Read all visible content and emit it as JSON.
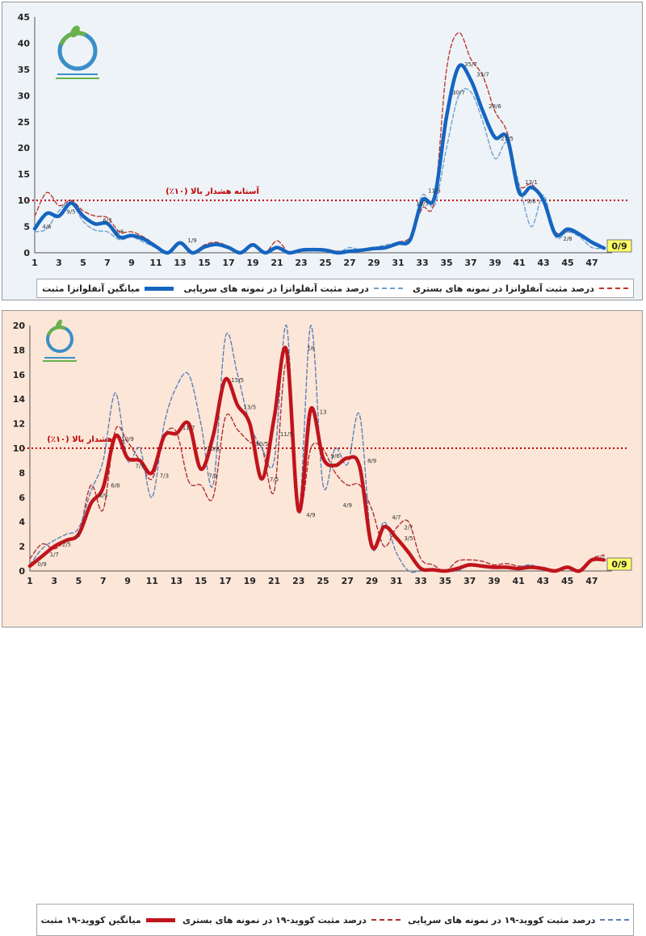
{
  "chart_data": [
    {
      "type": "line",
      "id": "flu",
      "colors": {
        "avg": "#1565c0",
        "outpatient": "#6fa0cc",
        "inpatient": "#c0392b",
        "threshold": "#c00000"
      },
      "xlim": [
        1,
        48
      ],
      "x_ticks": [
        1,
        3,
        5,
        7,
        9,
        11,
        13,
        15,
        17,
        19,
        21,
        23,
        25,
        27,
        29,
        31,
        33,
        35,
        37,
        39,
        41,
        43,
        45,
        47
      ],
      "ylim": [
        0,
        45
      ],
      "y_ticks": [
        0,
        5,
        10,
        15,
        20,
        25,
        30,
        35,
        40,
        45
      ],
      "threshold": {
        "value": 10,
        "label": "آستانه هشدار بالا (۱۰٪)"
      },
      "last_value_label": "0/9",
      "series": [
        {
          "name": "میانگین آنفلوانزا مثبت",
          "key": "avg",
          "x": [
            1,
            2,
            3,
            4,
            5,
            6,
            7,
            8,
            9,
            10,
            11,
            12,
            13,
            14,
            15,
            16,
            17,
            18,
            19,
            20,
            21,
            22,
            23,
            24,
            25,
            26,
            27,
            28,
            29,
            30,
            31,
            32,
            33,
            34,
            35,
            36,
            37,
            38,
            39,
            40,
            41,
            42,
            43,
            44,
            45,
            46,
            47,
            48
          ],
          "values": [
            4.6,
            7.5,
            7,
            9.5,
            7,
            5.5,
            5.6,
            3,
            3.3,
            2.6,
            1.2,
            0,
            1.9,
            0,
            1.1,
            1.6,
            1,
            0,
            1.5,
            0,
            1,
            0,
            0.5,
            0.6,
            0.5,
            0,
            0.3,
            0.5,
            0.8,
            1,
            1.8,
            2.5,
            10,
            10.5,
            26,
            35.5,
            33,
            27,
            22,
            22,
            11.5,
            12.5,
            10,
            3.5,
            4.5,
            3.5,
            2,
            0.9
          ]
        },
        {
          "name": "درصد مثبت آنفلوانزا در نمونه های سرپایی",
          "key": "outpatient",
          "x": [
            1,
            2,
            3,
            4,
            5,
            6,
            7,
            8,
            9,
            10,
            11,
            12,
            13,
            14,
            15,
            16,
            17,
            18,
            19,
            20,
            21,
            22,
            23,
            24,
            25,
            26,
            27,
            28,
            29,
            30,
            31,
            32,
            33,
            34,
            35,
            36,
            37,
            38,
            39,
            40,
            41,
            42,
            43,
            44,
            45,
            46,
            47,
            48
          ],
          "values": [
            4,
            4.6,
            8,
            9.5,
            6,
            4.3,
            4,
            2.5,
            3,
            2,
            1,
            0,
            2,
            0,
            1,
            1.5,
            1,
            0,
            1.5,
            0,
            1.2,
            0,
            0.6,
            0.5,
            0.5,
            0,
            1,
            0.5,
            1,
            1.5,
            2,
            3,
            11,
            9,
            20,
            30,
            30.7,
            25,
            18,
            21,
            13,
            5,
            11,
            3,
            4,
            3,
            1,
            0.9
          ]
        },
        {
          "name": "درصد مثبت آنفلوانزا در نمونه های بستری",
          "key": "inpatient",
          "x": [
            1,
            2,
            3,
            4,
            5,
            6,
            7,
            8,
            9,
            10,
            11,
            12,
            13,
            14,
            15,
            16,
            17,
            18,
            19,
            20,
            21,
            22,
            23,
            24,
            25,
            26,
            27,
            28,
            29,
            30,
            31,
            32,
            33,
            34,
            35,
            36,
            37,
            38,
            39,
            40,
            41,
            42,
            43,
            44,
            45,
            46,
            47,
            48
          ],
          "values": [
            7,
            11.5,
            9,
            10,
            8,
            7,
            6.7,
            4,
            4,
            3,
            1.5,
            0,
            2,
            0,
            1.5,
            2,
            1.2,
            0,
            1.8,
            0,
            2.3,
            0,
            0.5,
            0.7,
            0.7,
            0.3,
            0.5,
            0.5,
            0.8,
            1,
            2,
            3,
            8.5,
            10,
            35,
            42,
            37,
            33.7,
            27,
            23,
            13,
            13.1,
            10,
            4,
            4,
            3.5,
            2,
            0.9
          ]
        }
      ],
      "annotations": [
        {
          "x": 2,
          "y": 4.6,
          "text": "4/6"
        },
        {
          "x": 4,
          "y": 7.5,
          "text": "9/5"
        },
        {
          "x": 7,
          "y": 5.8,
          "text": "6/7"
        },
        {
          "x": 8,
          "y": 3.6,
          "text": "3/6"
        },
        {
          "x": 14,
          "y": 2,
          "text": "1/9"
        },
        {
          "x": 33,
          "y": 9,
          "text": "10/5"
        },
        {
          "x": 34,
          "y": 11.5,
          "text": "11/5"
        },
        {
          "x": 36,
          "y": 30.2,
          "text": "30/7"
        },
        {
          "x": 37,
          "y": 35.6,
          "text": "35/7"
        },
        {
          "x": 38,
          "y": 33.7,
          "text": "33/7"
        },
        {
          "x": 39,
          "y": 27.6,
          "text": "28/6"
        },
        {
          "x": 40,
          "y": 21.4,
          "text": "21/5"
        },
        {
          "x": 42,
          "y": 13.1,
          "text": "13/1"
        },
        {
          "x": 42,
          "y": 9.5,
          "text": "9/6"
        },
        {
          "x": 45,
          "y": 2.3,
          "text": "2/8"
        }
      ]
    },
    {
      "type": "line",
      "id": "covid",
      "colors": {
        "avg": "#c0141c",
        "outpatient": "#5b82b8",
        "inpatient": "#b03030",
        "threshold": "#c00000"
      },
      "xlim": [
        1,
        48
      ],
      "x_ticks": [
        1,
        3,
        5,
        7,
        9,
        11,
        13,
        15,
        17,
        19,
        21,
        23,
        25,
        27,
        29,
        31,
        33,
        35,
        37,
        39,
        41,
        43,
        45,
        47
      ],
      "ylim": [
        0,
        20
      ],
      "y_ticks": [
        0,
        2,
        4,
        6,
        8,
        10,
        12,
        14,
        16,
        18,
        20
      ],
      "threshold": {
        "value": 10,
        "label": "هشدار بالا (۱۰٪)"
      },
      "last_value_label": "0/9",
      "series": [
        {
          "name": "میانگین کووید-۱۹ مثبت",
          "key": "avg",
          "x": [
            1,
            2,
            3,
            4,
            5,
            6,
            7,
            8,
            9,
            10,
            11,
            12,
            13,
            14,
            15,
            16,
            17,
            18,
            19,
            20,
            21,
            22,
            23,
            24,
            25,
            26,
            27,
            28,
            29,
            30,
            31,
            32,
            33,
            34,
            35,
            36,
            37,
            38,
            39,
            40,
            41,
            42,
            43,
            44,
            45,
            46,
            47,
            48
          ],
          "values": [
            0.4,
            1.2,
            2,
            2.5,
            3,
            5.5,
            6.8,
            11,
            9.2,
            9,
            8,
            11,
            11.2,
            12,
            8.3,
            11,
            15.6,
            13.5,
            12,
            7.5,
            12.5,
            18,
            4.9,
            13.2,
            9.2,
            8.6,
            9.2,
            8.5,
            2,
            3.6,
            2.7,
            1.5,
            0.2,
            0.1,
            0,
            0.2,
            0.5,
            0.4,
            0.3,
            0.3,
            0.2,
            0.3,
            0.2,
            0,
            0.3,
            0,
            0.9,
            0.9
          ]
        },
        {
          "name": "درصد مثبت کووید-۱۹ در نمونه های سرپایی",
          "key": "outpatient",
          "x": [
            1,
            2,
            3,
            4,
            5,
            6,
            7,
            8,
            9,
            10,
            11,
            12,
            13,
            14,
            15,
            16,
            17,
            18,
            19,
            20,
            21,
            22,
            23,
            24,
            25,
            26,
            27,
            28,
            29,
            30,
            31,
            32,
            33,
            34,
            35,
            36,
            37,
            38,
            39,
            40,
            41,
            42,
            43,
            44,
            45,
            46,
            47,
            48
          ],
          "values": [
            0.5,
            1.8,
            2.5,
            3,
            3.5,
            6.5,
            9,
            14.5,
            9,
            10,
            6,
            12,
            15,
            16,
            12,
            7,
            19,
            16,
            12,
            10,
            9,
            20,
            5,
            20,
            7,
            10,
            8.7,
            12.7,
            2,
            4,
            1.5,
            0,
            0,
            0,
            0,
            0,
            0.5,
            0.3,
            0.3,
            0.2,
            0.3,
            0.5,
            0.1,
            0,
            0.2,
            0,
            0.8,
            1.2
          ]
        },
        {
          "name": "درصد مثبت کووید-۱۹ در نمونه های بستری",
          "key": "inpatient",
          "x": [
            1,
            2,
            3,
            4,
            5,
            6,
            7,
            8,
            9,
            10,
            11,
            12,
            13,
            14,
            15,
            16,
            17,
            18,
            19,
            20,
            21,
            22,
            23,
            24,
            25,
            26,
            27,
            28,
            29,
            30,
            31,
            32,
            33,
            34,
            35,
            36,
            37,
            38,
            39,
            40,
            41,
            42,
            43,
            44,
            45,
            46,
            47,
            48
          ],
          "values": [
            1,
            2.2,
            1.8,
            2.5,
            3,
            7,
            5,
            11.5,
            10.5,
            9,
            7.5,
            11,
            11.3,
            7.3,
            7,
            6,
            12.5,
            11.5,
            10.5,
            10,
            6.5,
            17,
            4.9,
            10,
            9.9,
            8,
            7,
            7,
            5,
            2,
            3.5,
            4,
            1,
            0.5,
            0,
            0.8,
            0.9,
            0.8,
            0.5,
            0.6,
            0.4,
            0.4,
            0.2,
            0.1,
            0.3,
            0,
            1,
            1.3
          ]
        }
      ],
      "annotations": [
        {
          "x": 2,
          "y": 0.4,
          "text": "0/9"
        },
        {
          "x": 3,
          "y": 1.2,
          "text": "1/7"
        },
        {
          "x": 4,
          "y": 2,
          "text": "2/5"
        },
        {
          "x": 5,
          "y": 2.8,
          "text": "1"
        },
        {
          "x": 7,
          "y": 6,
          "text": "4/9"
        },
        {
          "x": 8,
          "y": 6.8,
          "text": "6/8"
        },
        {
          "x": 9,
          "y": 10.6,
          "text": "10/9"
        },
        {
          "x": 10,
          "y": 8.4,
          "text": "7/9"
        },
        {
          "x": 12,
          "y": 7.6,
          "text": "7/3"
        },
        {
          "x": 14,
          "y": 11.5,
          "text": "11/7"
        },
        {
          "x": 16,
          "y": 9.8,
          "text": "10/8"
        },
        {
          "x": 16,
          "y": 7.6,
          "text": "7/3"
        },
        {
          "x": 18,
          "y": 15.4,
          "text": "15/5"
        },
        {
          "x": 19,
          "y": 13.2,
          "text": "13/5"
        },
        {
          "x": 20,
          "y": 10.2,
          "text": "10/5"
        },
        {
          "x": 21,
          "y": 7.3,
          "text": "7/5"
        },
        {
          "x": 22,
          "y": 11,
          "text": "11/5"
        },
        {
          "x": 24,
          "y": 4.4,
          "text": "4/9"
        },
        {
          "x": 24,
          "y": 18,
          "text": "18"
        },
        {
          "x": 25,
          "y": 12.8,
          "text": "13"
        },
        {
          "x": 26,
          "y": 9.2,
          "text": "9/6"
        },
        {
          "x": 29,
          "y": 8.8,
          "text": "8/9"
        },
        {
          "x": 27,
          "y": 5.2,
          "text": "4/9"
        },
        {
          "x": 31,
          "y": 4.2,
          "text": "4/7"
        },
        {
          "x": 32,
          "y": 3.4,
          "text": "2/7"
        },
        {
          "x": 32,
          "y": 2.5,
          "text": "3/5"
        }
      ]
    }
  ]
}
